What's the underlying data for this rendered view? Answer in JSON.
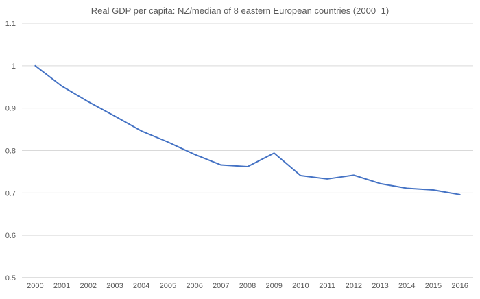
{
  "chart_data": {
    "type": "line",
    "title": "Real GDP per capita: NZ/median of 8 eastern European countries (2000=1)",
    "xlabel": "",
    "ylabel": "",
    "x": [
      "2000",
      "2001",
      "2002",
      "2003",
      "2004",
      "2005",
      "2006",
      "2007",
      "2008",
      "2009",
      "2010",
      "2011",
      "2012",
      "2013",
      "2014",
      "2015",
      "2016"
    ],
    "series": [
      {
        "name": "NZ/median of 8 eastern European countries",
        "color": "#4472C4",
        "values": [
          1.0,
          0.952,
          0.915,
          0.881,
          0.846,
          0.82,
          0.791,
          0.766,
          0.762,
          0.794,
          0.741,
          0.733,
          0.742,
          0.722,
          0.711,
          0.707,
          0.696
        ]
      }
    ],
    "ylim": [
      0.5,
      1.1
    ],
    "yticks": [
      0.5,
      0.6,
      0.7,
      0.8,
      0.9,
      1,
      1.1
    ],
    "ytick_labels": [
      "0.5",
      "0.6",
      "0.7",
      "0.8",
      "0.9",
      "1",
      "1.1"
    ],
    "grid": true,
    "legend": "none",
    "colors": {
      "gridline": "#d9d9d9",
      "axis": "#bfbfbf",
      "text": "#595959"
    }
  }
}
